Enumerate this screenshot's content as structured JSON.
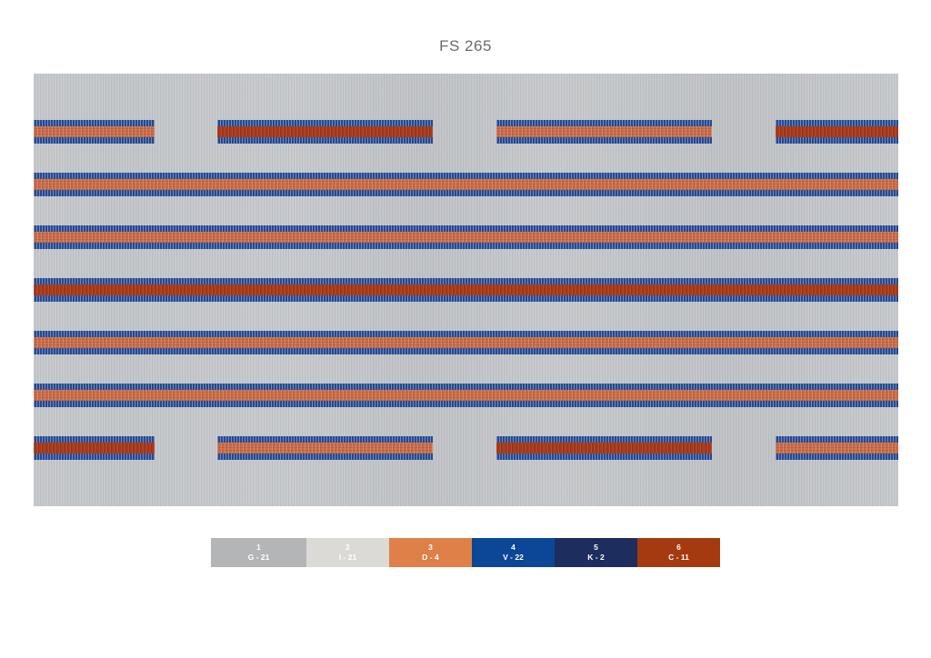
{
  "title": "FS 265",
  "rug": {
    "base_color": "#c2c5c8",
    "edge_color": "#27488f",
    "core_colors": {
      "orange": "#cf6e44",
      "rust": "#a83a1c"
    },
    "short_rows": [
      {
        "segments": [
          "orange",
          "rust",
          "orange",
          "rust"
        ]
      },
      {
        "segments": [
          "rust",
          "orange",
          "rust",
          "orange"
        ]
      }
    ],
    "full_rows": [
      {
        "core": "orange"
      },
      {
        "core": "orange"
      },
      {
        "core": "rust"
      },
      {
        "core": "orange"
      },
      {
        "core": "orange"
      }
    ]
  },
  "palette": [
    {
      "number": "1",
      "code": "G - 21",
      "color": "#b3b5b7",
      "text_color": "#ffffff"
    },
    {
      "number": "2",
      "code": "I - 21",
      "color": "#dcdad6",
      "text_color": "#ffffff"
    },
    {
      "number": "3",
      "code": "D - 4",
      "color": "#df8048",
      "text_color": "#ffffff"
    },
    {
      "number": "4",
      "code": "V - 22",
      "color": "#0b4796",
      "text_color": "#ffffff"
    },
    {
      "number": "5",
      "code": "K - 2",
      "color": "#1c2d5e",
      "text_color": "#ffffff"
    },
    {
      "number": "6",
      "code": "C - 11",
      "color": "#a53a10",
      "text_color": "#ffffff"
    }
  ]
}
